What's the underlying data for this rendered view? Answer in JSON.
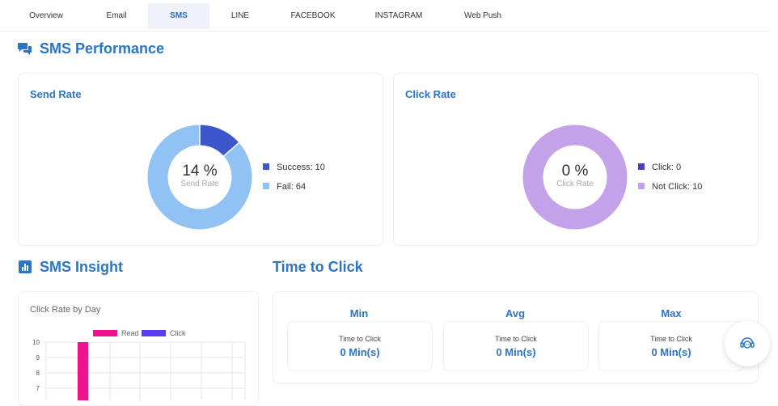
{
  "tabs": [
    {
      "label": "Overview",
      "active": false
    },
    {
      "label": "Email",
      "active": false
    },
    {
      "label": "SMS",
      "active": true
    },
    {
      "label": "LINE",
      "active": false
    },
    {
      "label": "FACEBOOK",
      "active": false
    },
    {
      "label": "INSTAGRAM",
      "active": false
    },
    {
      "label": "Web Push",
      "active": false
    }
  ],
  "performance": {
    "title": "SMS Performance",
    "icon": "chat-bubbles-icon",
    "send_rate": {
      "title": "Send Rate",
      "center_value": "14 %",
      "center_label": "Send Rate",
      "legend": [
        {
          "label": "Success: 10",
          "color": "#3d56c9"
        },
        {
          "label": "Fail: 64",
          "color": "#90c3f4"
        }
      ]
    },
    "click_rate": {
      "title": "Click Rate",
      "center_value": "0 %",
      "center_label": "Click Rate",
      "legend": [
        {
          "label": "Click: 0",
          "color": "#4a3ec4"
        },
        {
          "label": "Not Click: 10",
          "color": "#c3a2ea"
        }
      ]
    }
  },
  "insight": {
    "title": "SMS Insight",
    "icon": "bar-chart-icon"
  },
  "chart_data": [
    {
      "type": "pie",
      "title": "Send Rate",
      "labels": [
        "Success",
        "Fail"
      ],
      "values": [
        10,
        64
      ],
      "colors": [
        "#3d56c9",
        "#90c3f4"
      ]
    },
    {
      "type": "pie",
      "title": "Click Rate",
      "labels": [
        "Click",
        "Not Click"
      ],
      "values": [
        0,
        10
      ],
      "colors": [
        "#4a3ec4",
        "#c3a2ea"
      ]
    },
    {
      "type": "bar",
      "title": "Click Rate by Day",
      "series": [
        {
          "name": "Read",
          "color": "#f0148c",
          "values": [
            10
          ]
        },
        {
          "name": "Click",
          "color": "#5b3df0",
          "values": [
            0
          ]
        }
      ],
      "y_ticks_visible": [
        "10",
        "9",
        "8",
        "7"
      ],
      "ylim": [
        0,
        10
      ]
    }
  ],
  "time_to_click": {
    "title": "Time to Click",
    "columns": [
      {
        "heading": "Min",
        "label": "Time to Click",
        "value": "0 Min(s)"
      },
      {
        "heading": "Avg",
        "label": "Time to Click",
        "value": "0 Min(s)"
      },
      {
        "heading": "Max",
        "label": "Time to Click",
        "value": "0 Min(s)"
      }
    ]
  },
  "help_button": {
    "icon": "support-agent-icon"
  }
}
